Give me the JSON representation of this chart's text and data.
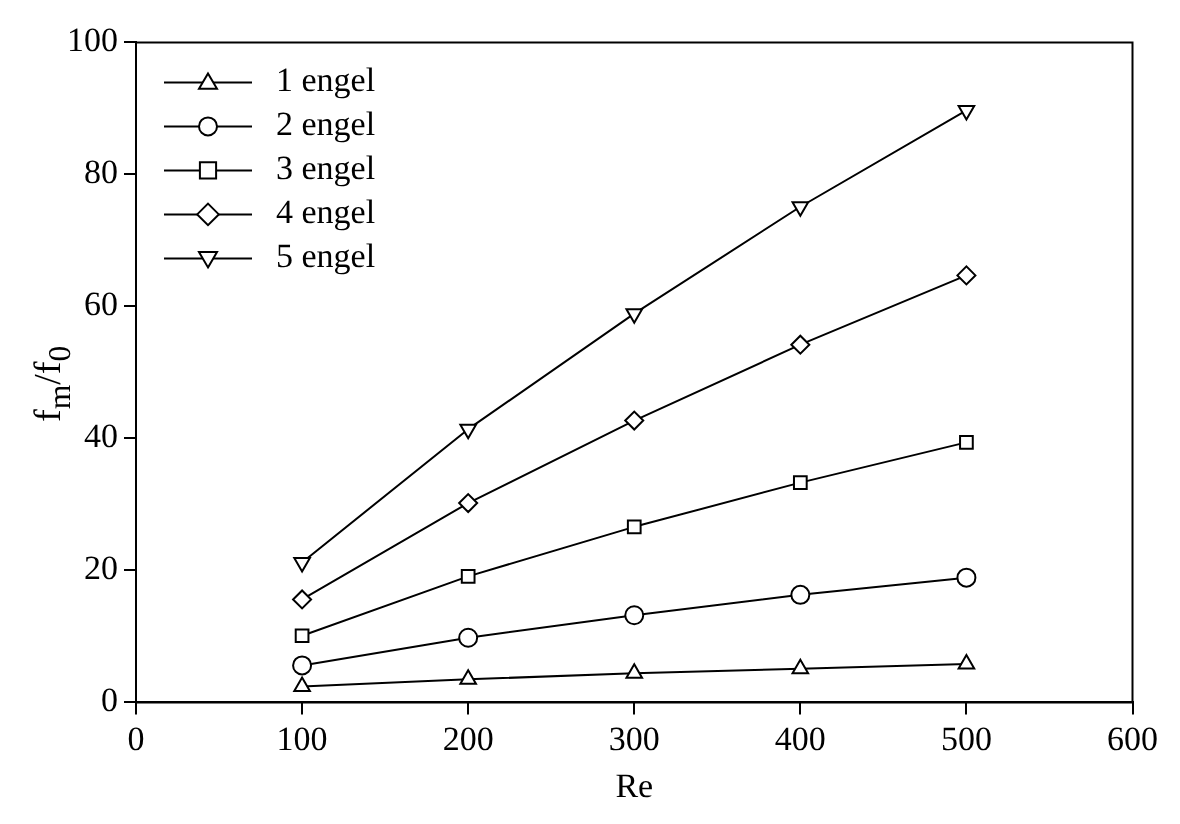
{
  "chart_data": {
    "type": "line",
    "xlabel": "Re",
    "ylabel": "f$_{m}$/f$_{0}$",
    "x": [
      100,
      200,
      300,
      400,
      500
    ],
    "series": [
      {
        "name": "1 engel",
        "color": "#000000",
        "marker": "triangle",
        "values": [
          2.4,
          3.5,
          4.4,
          5.1,
          5.8
        ]
      },
      {
        "name": "2 engel",
        "color": "#000000",
        "marker": "circle",
        "values": [
          5.6,
          9.8,
          13.2,
          16.3,
          18.9
        ]
      },
      {
        "name": "3 engel",
        "color": "#000000",
        "marker": "square",
        "values": [
          10.1,
          19.1,
          26.6,
          33.3,
          39.4
        ]
      },
      {
        "name": "4 engel",
        "color": "#000000",
        "marker": "diamond",
        "values": [
          15.6,
          30.2,
          42.7,
          54.2,
          64.7
        ]
      },
      {
        "name": "5 engel",
        "color": "#000000",
        "marker": "triangle-down",
        "values": [
          21.2,
          41.4,
          58.9,
          75.1,
          89.7
        ]
      }
    ],
    "xlim": [
      0,
      600
    ],
    "xticks": [
      0,
      100,
      200,
      300,
      400,
      500,
      600
    ],
    "ylim": [
      0,
      100
    ],
    "yticks": [
      0,
      20,
      40,
      60,
      80,
      100
    ],
    "grid": false,
    "legend": "top left",
    "line_style": "solid"
  }
}
